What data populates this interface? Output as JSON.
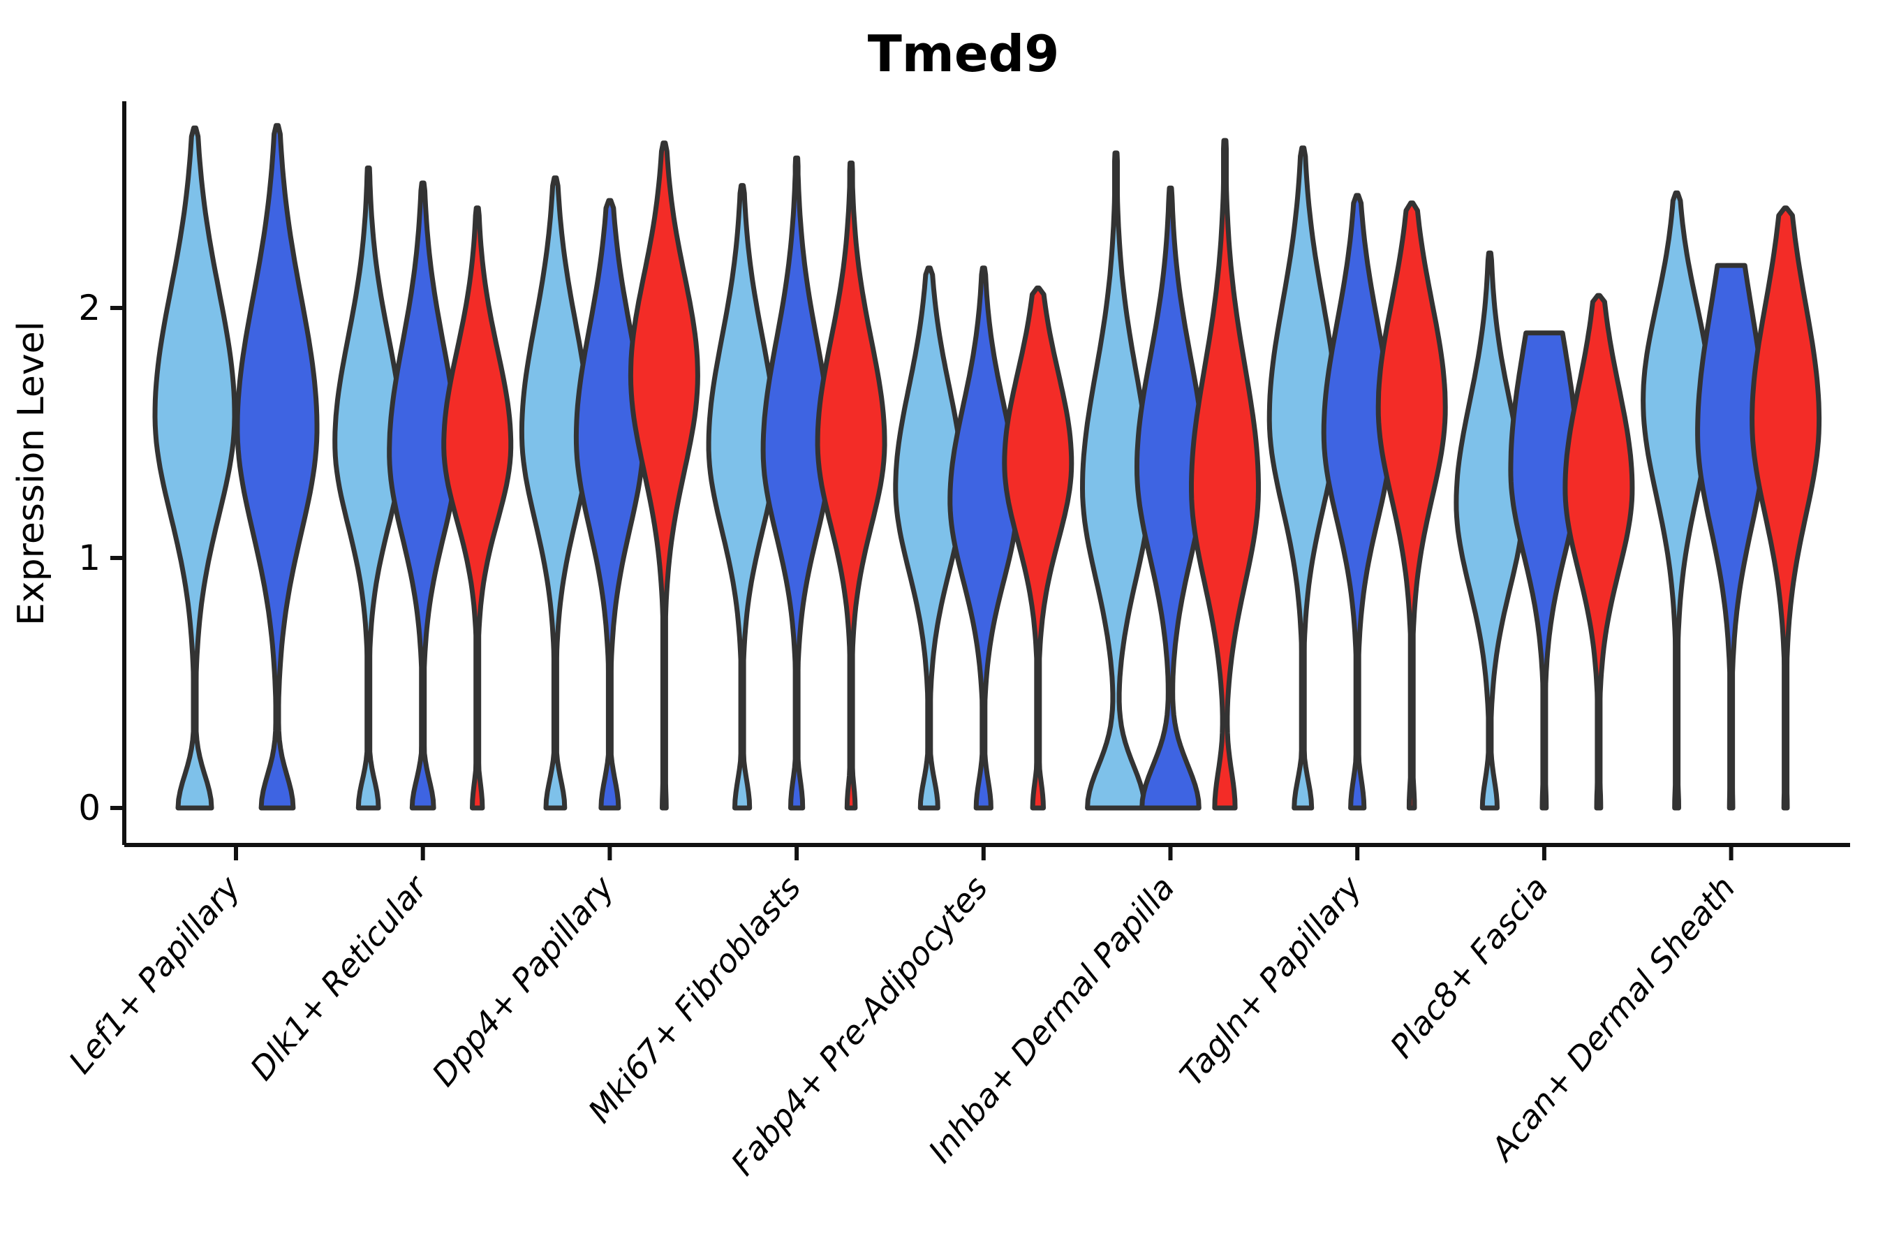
{
  "title": "Tmed9",
  "y_axis": {
    "label": "Expression Level",
    "tick_labels": [
      "0",
      "1",
      "2"
    ]
  },
  "x_axis": {
    "categories": [
      "Lef1+ Papillary",
      "Dlk1+ Reticular",
      "Dpp4+ Papillary",
      "Mki67+ Fibroblasts",
      "Fabp4+ Pre-Adipocytes",
      "Inhba+ Dermal Papilla",
      "Tagln+ Papillary",
      "Plac8+ Fascia",
      "Acan+ Dermal Sheath"
    ]
  },
  "palette": {
    "light_blue": "#7EC1EA",
    "royal_blue": "#3E64E2",
    "red": "#F32C27",
    "violin_outline": "#333333",
    "axis_color": "#111111",
    "text_color": "#000000"
  },
  "chart_data": {
    "type": "violin",
    "title": "Tmed9",
    "xlabel": "",
    "ylabel": "Expression Level",
    "ylim": [
      -0.15,
      2.83
    ],
    "yticks": [
      0,
      1,
      2
    ],
    "ytick_labels": [
      "0",
      "1",
      "2"
    ],
    "grid": false,
    "legend": "none",
    "categories": [
      "Lef1+ Papillary",
      "Dlk1+ Reticular",
      "Dpp4+ Papillary",
      "Mki67+ Fibroblasts",
      "Fabp4+ Pre-Adipocytes",
      "Inhba+ Dermal Papilla",
      "Tagln+ Papillary",
      "Plac8+ Fascia",
      "Acan+ Dermal Sheath"
    ],
    "series_colors": [
      "#7EC1EA",
      "#3E64E2",
      "#F32C27"
    ],
    "violins": [
      {
        "category_index": 0,
        "series": 0,
        "color": "#7EC1EA",
        "offset": -59,
        "half_width": 57,
        "top": 2.72,
        "peak": 1.57,
        "sigma_up": 0.5,
        "sigma_down": 0.4,
        "zero_bump": 0.42,
        "bump_sigma": 0.13,
        "flat_top": false
      },
      {
        "category_index": 0,
        "series": 1,
        "color": "#3E64E2",
        "offset": 59,
        "half_width": 57,
        "top": 2.73,
        "peak": 1.52,
        "sigma_up": 0.52,
        "sigma_down": 0.42,
        "zero_bump": 0.4,
        "bump_sigma": 0.13,
        "flat_top": false
      },
      {
        "category_index": 1,
        "series": 0,
        "color": "#7EC1EA",
        "offset": -78,
        "half_width": 48,
        "top": 2.56,
        "peak": 1.46,
        "sigma_up": 0.42,
        "sigma_down": 0.33,
        "zero_bump": 0.3,
        "bump_sigma": 0.11,
        "flat_top": false
      },
      {
        "category_index": 1,
        "series": 1,
        "color": "#3E64E2",
        "offset": 0,
        "half_width": 48,
        "top": 2.5,
        "peak": 1.42,
        "sigma_up": 0.44,
        "sigma_down": 0.34,
        "zero_bump": 0.32,
        "bump_sigma": 0.11,
        "flat_top": false
      },
      {
        "category_index": 1,
        "series": 2,
        "color": "#F32C27",
        "offset": 78,
        "half_width": 48,
        "top": 2.4,
        "peak": 1.45,
        "sigma_up": 0.38,
        "sigma_down": 0.3,
        "zero_bump": 0.15,
        "bump_sigma": 0.1,
        "flat_top": false
      },
      {
        "category_index": 2,
        "series": 0,
        "color": "#7EC1EA",
        "offset": -78,
        "half_width": 48,
        "top": 2.52,
        "peak": 1.5,
        "sigma_up": 0.44,
        "sigma_down": 0.35,
        "zero_bump": 0.28,
        "bump_sigma": 0.11,
        "flat_top": false
      },
      {
        "category_index": 2,
        "series": 1,
        "color": "#3E64E2",
        "offset": 0,
        "half_width": 48,
        "top": 2.43,
        "peak": 1.48,
        "sigma_up": 0.44,
        "sigma_down": 0.36,
        "zero_bump": 0.26,
        "bump_sigma": 0.11,
        "flat_top": false
      },
      {
        "category_index": 2,
        "series": 2,
        "color": "#F32C27",
        "offset": 78,
        "half_width": 48,
        "top": 2.66,
        "peak": 1.73,
        "sigma_up": 0.4,
        "sigma_down": 0.38,
        "zero_bump": 0.06,
        "bump_sigma": 0.1,
        "flat_top": false
      },
      {
        "category_index": 3,
        "series": 0,
        "color": "#7EC1EA",
        "offset": -78,
        "half_width": 48,
        "top": 2.49,
        "peak": 1.45,
        "sigma_up": 0.43,
        "sigma_down": 0.34,
        "zero_bump": 0.22,
        "bump_sigma": 0.11,
        "flat_top": false
      },
      {
        "category_index": 3,
        "series": 1,
        "color": "#3E64E2",
        "offset": 0,
        "half_width": 48,
        "top": 2.6,
        "peak": 1.43,
        "sigma_up": 0.44,
        "sigma_down": 0.34,
        "zero_bump": 0.18,
        "bump_sigma": 0.11,
        "flat_top": false
      },
      {
        "category_index": 3,
        "series": 2,
        "color": "#F32C27",
        "offset": 78,
        "half_width": 48,
        "top": 2.58,
        "peak": 1.46,
        "sigma_up": 0.41,
        "sigma_down": 0.33,
        "zero_bump": 0.12,
        "bump_sigma": 0.1,
        "flat_top": false
      },
      {
        "category_index": 4,
        "series": 0,
        "color": "#7EC1EA",
        "offset": -78,
        "half_width": 48,
        "top": 2.16,
        "peak": 1.28,
        "sigma_up": 0.4,
        "sigma_down": 0.33,
        "zero_bump": 0.26,
        "bump_sigma": 0.11,
        "flat_top": false
      },
      {
        "category_index": 4,
        "series": 1,
        "color": "#3E64E2",
        "offset": 0,
        "half_width": 48,
        "top": 2.16,
        "peak": 1.23,
        "sigma_up": 0.38,
        "sigma_down": 0.32,
        "zero_bump": 0.22,
        "bump_sigma": 0.11,
        "flat_top": false
      },
      {
        "category_index": 4,
        "series": 2,
        "color": "#F32C27",
        "offset": 78,
        "half_width": 48,
        "top": 2.08,
        "peak": 1.38,
        "sigma_up": 0.36,
        "sigma_down": 0.31,
        "zero_bump": 0.16,
        "bump_sigma": 0.1,
        "flat_top": false
      },
      {
        "category_index": 5,
        "series": 0,
        "color": "#7EC1EA",
        "offset": -78,
        "half_width": 48,
        "top": 2.62,
        "peak": 1.28,
        "sigma_up": 0.46,
        "sigma_down": 0.36,
        "zero_bump": 0.85,
        "bump_sigma": 0.17,
        "flat_top": false
      },
      {
        "category_index": 5,
        "series": 1,
        "color": "#3E64E2",
        "offset": 0,
        "half_width": 48,
        "top": 2.48,
        "peak": 1.36,
        "sigma_up": 0.44,
        "sigma_down": 0.36,
        "zero_bump": 0.85,
        "bump_sigma": 0.17,
        "flat_top": false
      },
      {
        "category_index": 5,
        "series": 2,
        "color": "#F32C27",
        "offset": 78,
        "half_width": 48,
        "top": 2.67,
        "peak": 1.28,
        "sigma_up": 0.48,
        "sigma_down": 0.38,
        "zero_bump": 0.3,
        "bump_sigma": 0.15,
        "flat_top": false
      },
      {
        "category_index": 6,
        "series": 0,
        "color": "#7EC1EA",
        "offset": -78,
        "half_width": 48,
        "top": 2.64,
        "peak": 1.56,
        "sigma_up": 0.46,
        "sigma_down": 0.36,
        "zero_bump": 0.26,
        "bump_sigma": 0.11,
        "flat_top": false
      },
      {
        "category_index": 6,
        "series": 1,
        "color": "#3E64E2",
        "offset": 0,
        "half_width": 48,
        "top": 2.45,
        "peak": 1.5,
        "sigma_up": 0.44,
        "sigma_down": 0.35,
        "zero_bump": 0.2,
        "bump_sigma": 0.11,
        "flat_top": false
      },
      {
        "category_index": 6,
        "series": 2,
        "color": "#F32C27",
        "offset": 78,
        "half_width": 48,
        "top": 2.42,
        "peak": 1.6,
        "sigma_up": 0.42,
        "sigma_down": 0.36,
        "zero_bump": 0.08,
        "bump_sigma": 0.1,
        "flat_top": false
      },
      {
        "category_index": 7,
        "series": 0,
        "color": "#7EC1EA",
        "offset": -78,
        "half_width": 48,
        "top": 2.22,
        "peak": 1.22,
        "sigma_up": 0.4,
        "sigma_down": 0.34,
        "zero_bump": 0.22,
        "bump_sigma": 0.11,
        "flat_top": false
      },
      {
        "category_index": 7,
        "series": 1,
        "color": "#3E64E2",
        "offset": 0,
        "half_width": 48,
        "top": 1.9,
        "peak": 1.35,
        "sigma_up": 0.5,
        "sigma_down": 0.34,
        "zero_bump": 0.06,
        "bump_sigma": 0.1,
        "flat_top": true
      },
      {
        "category_index": 7,
        "series": 2,
        "color": "#F32C27",
        "offset": 78,
        "half_width": 48,
        "top": 2.05,
        "peak": 1.28,
        "sigma_up": 0.4,
        "sigma_down": 0.33,
        "zero_bump": 0.06,
        "bump_sigma": 0.1,
        "flat_top": false
      },
      {
        "category_index": 8,
        "series": 0,
        "color": "#7EC1EA",
        "offset": -78,
        "half_width": 48,
        "top": 2.46,
        "peak": 1.63,
        "sigma_up": 0.38,
        "sigma_down": 0.38,
        "zero_bump": 0.06,
        "bump_sigma": 0.1,
        "flat_top": false
      },
      {
        "category_index": 8,
        "series": 1,
        "color": "#3E64E2",
        "offset": 0,
        "half_width": 48,
        "top": 2.17,
        "peak": 1.5,
        "sigma_up": 0.5,
        "sigma_down": 0.38,
        "zero_bump": 0.05,
        "bump_sigma": 0.1,
        "flat_top": true
      },
      {
        "category_index": 8,
        "series": 2,
        "color": "#F32C27",
        "offset": 78,
        "half_width": 48,
        "top": 2.4,
        "peak": 1.55,
        "sigma_up": 0.46,
        "sigma_down": 0.38,
        "zero_bump": 0.05,
        "bump_sigma": 0.1,
        "flat_top": false
      }
    ]
  }
}
